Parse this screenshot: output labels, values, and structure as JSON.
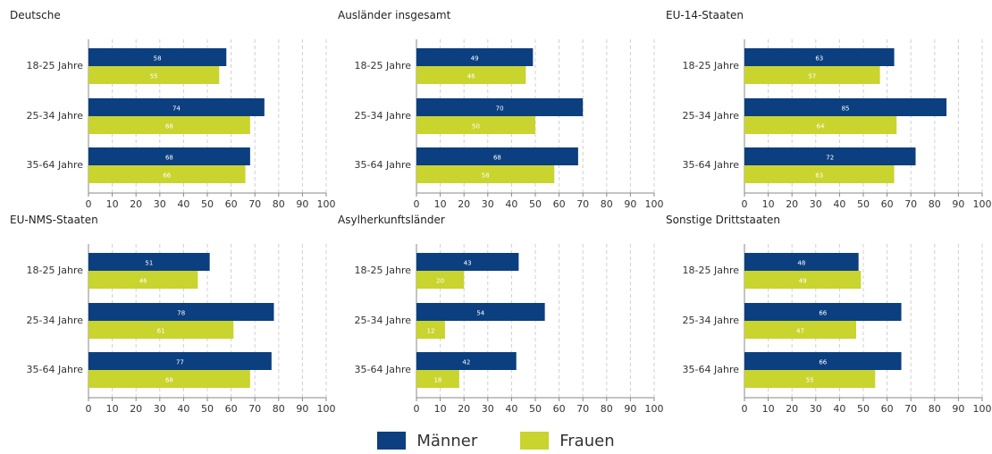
{
  "colors": {
    "men": "#0b3f7f",
    "women": "#c9d42f",
    "grid": "#d0d0d0",
    "axis": "#888888"
  },
  "legend": {
    "men": "Männer",
    "women": "Frauen"
  },
  "chart_data": [
    {
      "type": "bar",
      "title": "Deutsche",
      "categories": [
        "18-25 Jahre",
        "25-34 Jahre",
        "35-64 Jahre"
      ],
      "series": [
        {
          "name": "Männer",
          "values": [
            58,
            74,
            68
          ]
        },
        {
          "name": "Frauen",
          "values": [
            55,
            68,
            66
          ]
        }
      ],
      "xlim": [
        0,
        100
      ],
      "ticks": [
        0,
        10,
        20,
        30,
        40,
        50,
        60,
        70,
        80,
        90,
        100
      ]
    },
    {
      "type": "bar",
      "title": "Ausländer insgesamt",
      "categories": [
        "18-25 Jahre",
        "25-34 Jahre",
        "35-64 Jahre"
      ],
      "series": [
        {
          "name": "Männer",
          "values": [
            49,
            70,
            68
          ]
        },
        {
          "name": "Frauen",
          "values": [
            46,
            50,
            58
          ]
        }
      ],
      "xlim": [
        0,
        100
      ],
      "ticks": [
        0,
        10,
        20,
        30,
        40,
        50,
        60,
        70,
        80,
        90,
        100
      ]
    },
    {
      "type": "bar",
      "title": "EU-14-Staaten",
      "categories": [
        "18-25 Jahre",
        "25-34 Jahre",
        "35-64 Jahre"
      ],
      "series": [
        {
          "name": "Männer",
          "values": [
            63,
            85,
            72
          ]
        },
        {
          "name": "Frauen",
          "values": [
            57,
            64,
            63
          ]
        }
      ],
      "xlim": [
        0,
        100
      ],
      "ticks": [
        0,
        10,
        20,
        30,
        40,
        50,
        60,
        70,
        80,
        90,
        100
      ]
    },
    {
      "type": "bar",
      "title": "EU-NMS-Staaten",
      "categories": [
        "18-25 Jahre",
        "25-34 Jahre",
        "35-64 Jahre"
      ],
      "series": [
        {
          "name": "Männer",
          "values": [
            51,
            78,
            77
          ]
        },
        {
          "name": "Frauen",
          "values": [
            46,
            61,
            68
          ]
        }
      ],
      "xlim": [
        0,
        100
      ],
      "ticks": [
        0,
        10,
        20,
        30,
        40,
        50,
        60,
        70,
        80,
        90,
        100
      ]
    },
    {
      "type": "bar",
      "title": "Asylherkunftsländer",
      "categories": [
        "18-25 Jahre",
        "25-34 Jahre",
        "35-64 Jahre"
      ],
      "series": [
        {
          "name": "Männer",
          "values": [
            43,
            54,
            42
          ]
        },
        {
          "name": "Frauen",
          "values": [
            20,
            12,
            18
          ]
        }
      ],
      "xlim": [
        0,
        100
      ],
      "ticks": [
        0,
        10,
        20,
        30,
        40,
        50,
        60,
        70,
        80,
        90,
        100
      ]
    },
    {
      "type": "bar",
      "title": "Sonstige Drittstaaten",
      "categories": [
        "18-25 Jahre",
        "25-34 Jahre",
        "35-64 Jahre"
      ],
      "series": [
        {
          "name": "Männer",
          "values": [
            48,
            66,
            66
          ]
        },
        {
          "name": "Frauen",
          "values": [
            49,
            47,
            55
          ]
        }
      ],
      "xlim": [
        0,
        100
      ],
      "ticks": [
        0,
        10,
        20,
        30,
        40,
        50,
        60,
        70,
        80,
        90,
        100
      ]
    }
  ]
}
